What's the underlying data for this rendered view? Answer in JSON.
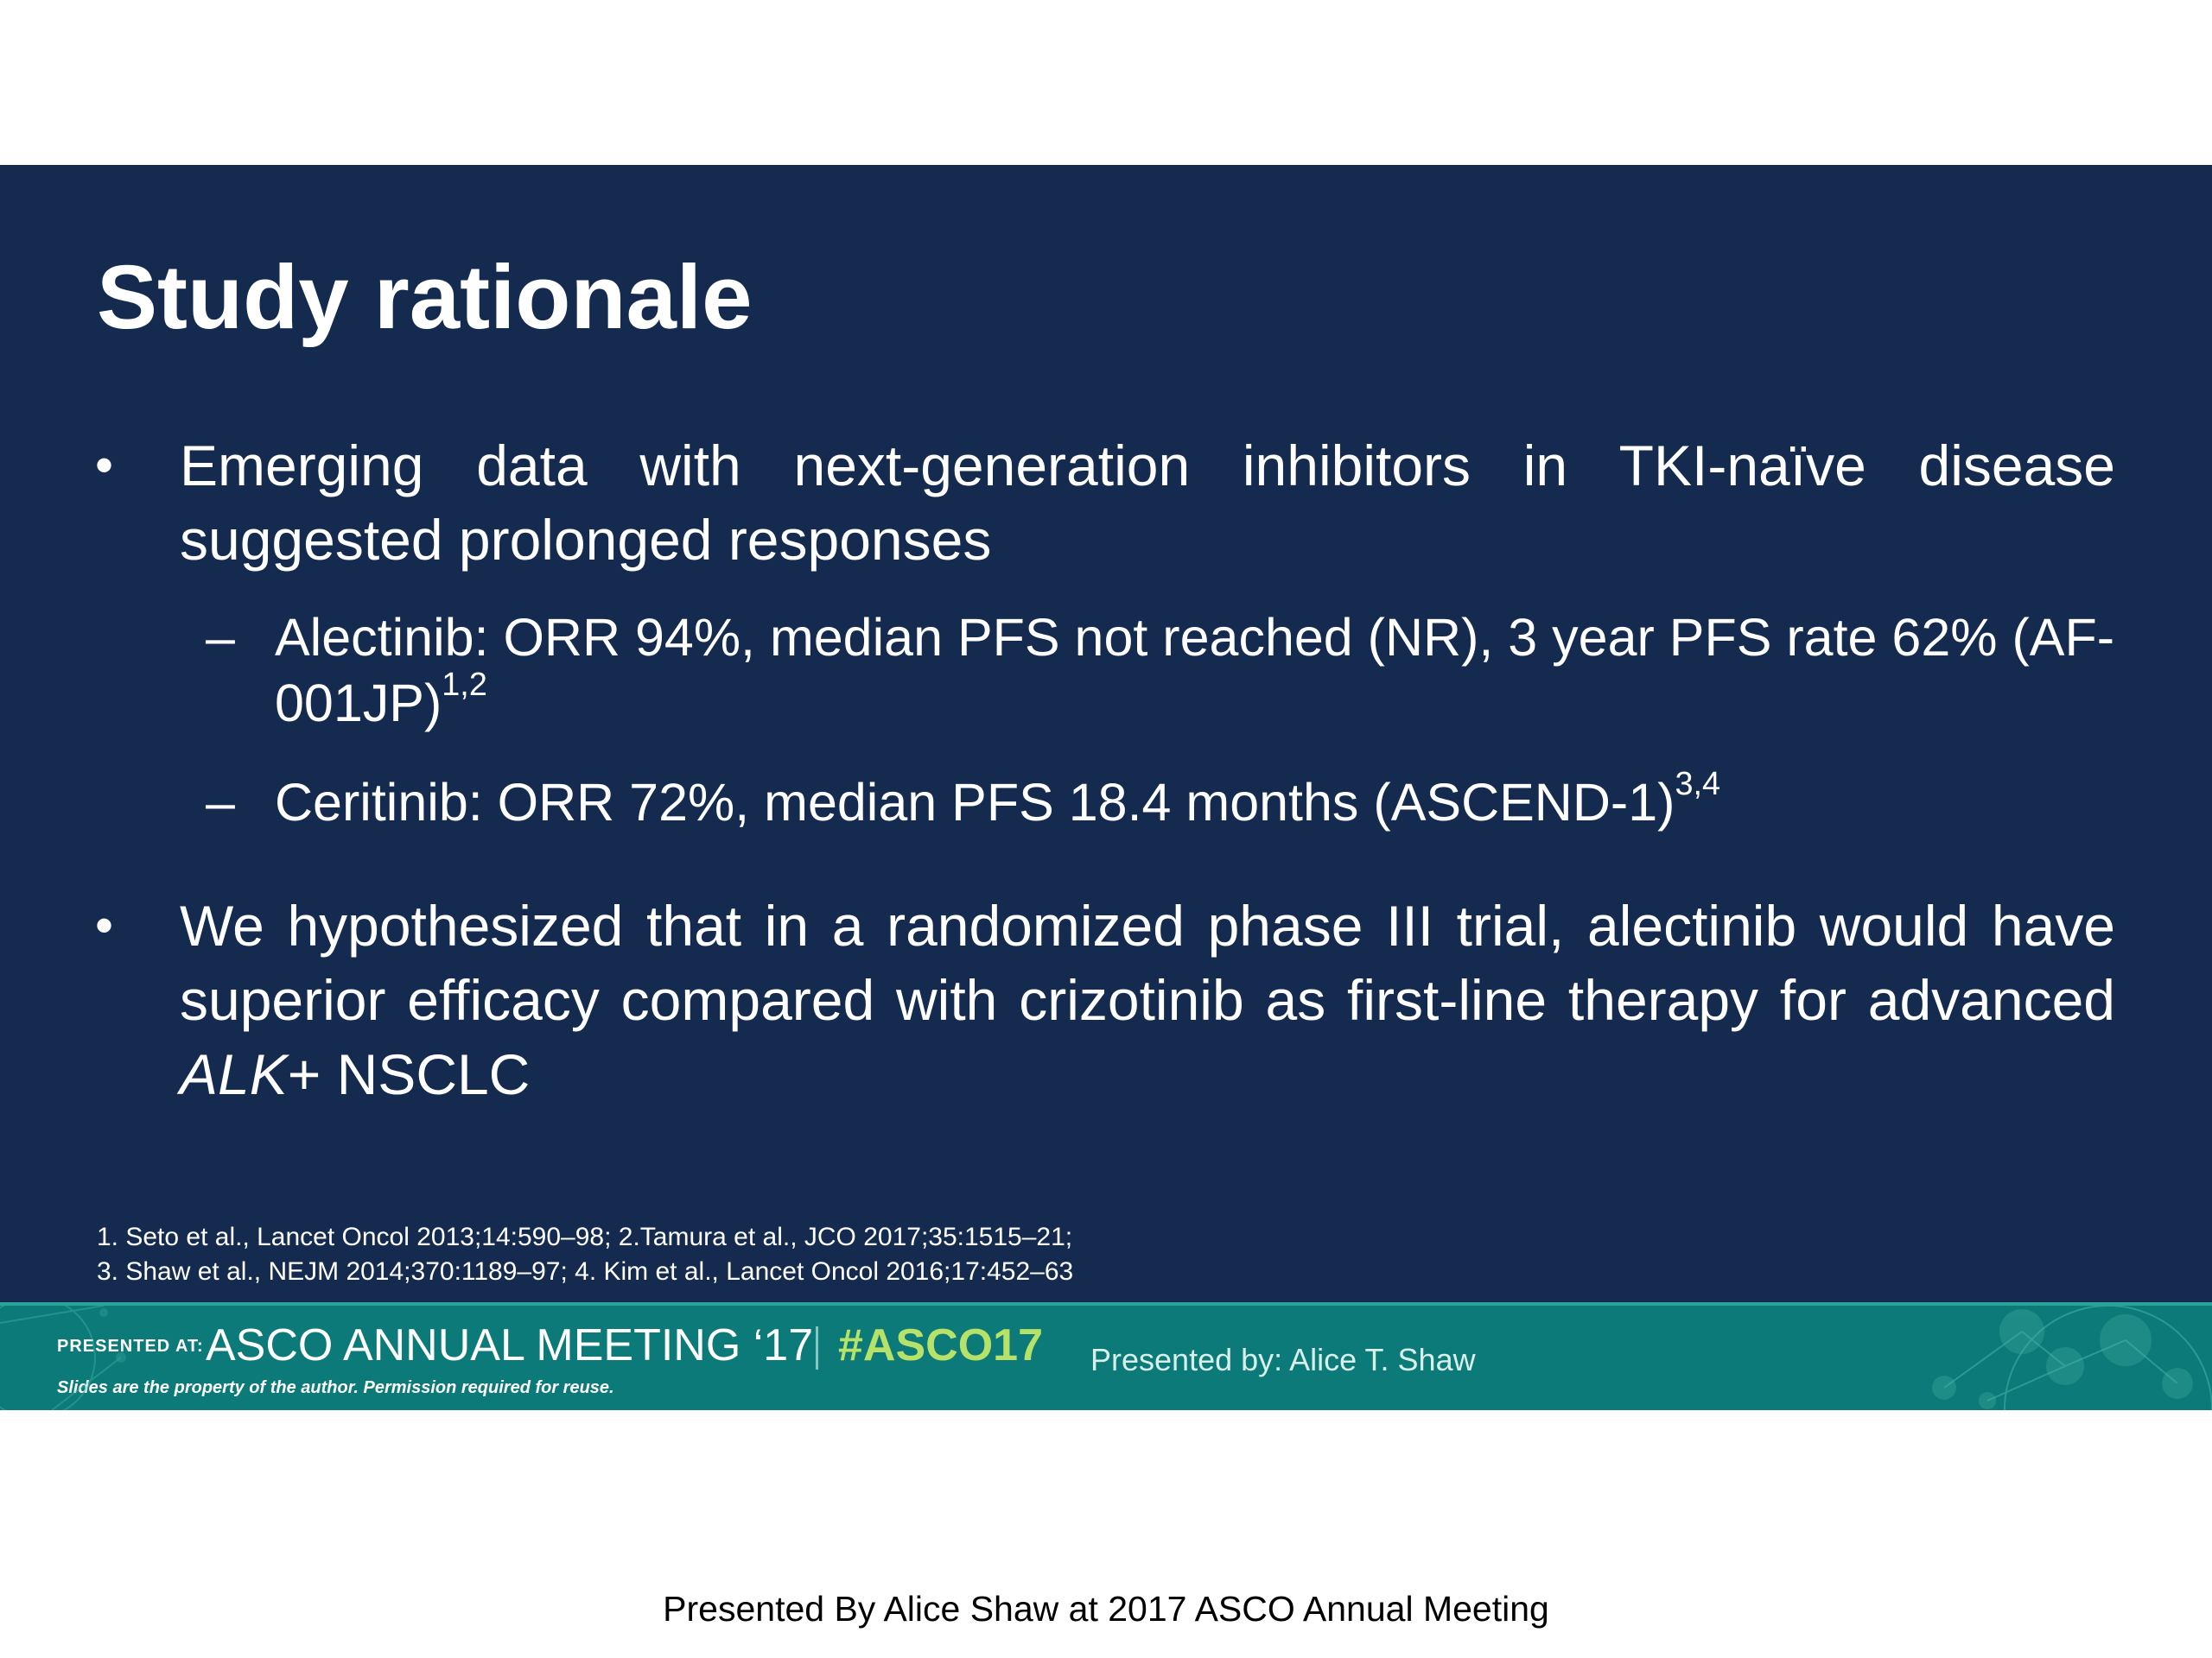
{
  "slide": {
    "title": "Study rationale",
    "bullet1": {
      "text": "Emerging data with next-generation inhibitors in TKI-naïve disease suggested prolonged responses",
      "sub1_text": "Alectinib: ORR 94%, median PFS not reached (NR), 3 year PFS rate 62% (AF-001JP)",
      "sub1_ref": "1,2",
      "sub2_text": "Ceritinib: ORR 72%, median PFS 18.4 months (ASCEND-1)",
      "sub2_ref": "3,4"
    },
    "bullet2": {
      "text_before": "We hypothesized that in a randomized phase III trial, alectinib would have superior efficacy compared with crizotinib as first-line therapy for advanced ",
      "gene": "ALK",
      "text_after": "+ NSCLC"
    },
    "references": [
      "1. Seto et al., Lancet Oncol 2013;14:590–98; 2.Tamura et al., JCO 2017;35:1515–21;",
      "3. Shaw et al., NEJM 2014;370:1189–97; 4. Kim et al., Lancet Oncol 2016;17:452–63"
    ]
  },
  "footer": {
    "presented_at": "PRESENTED AT:",
    "meeting": "ASCO ANNUAL MEETING ‘17",
    "hashtag": "#ASCO17",
    "disclaimer": "Slides are the property of the author. Permission required for reuse.",
    "presenter": "Presented by:  Alice T. Shaw"
  },
  "caption": "Presented By Alice Shaw at 2017 ASCO Annual Meeting",
  "colors": {
    "slide_bg": "#142a4f",
    "footer_bg": "#0b7a78",
    "hashtag": "#b7e26a"
  }
}
